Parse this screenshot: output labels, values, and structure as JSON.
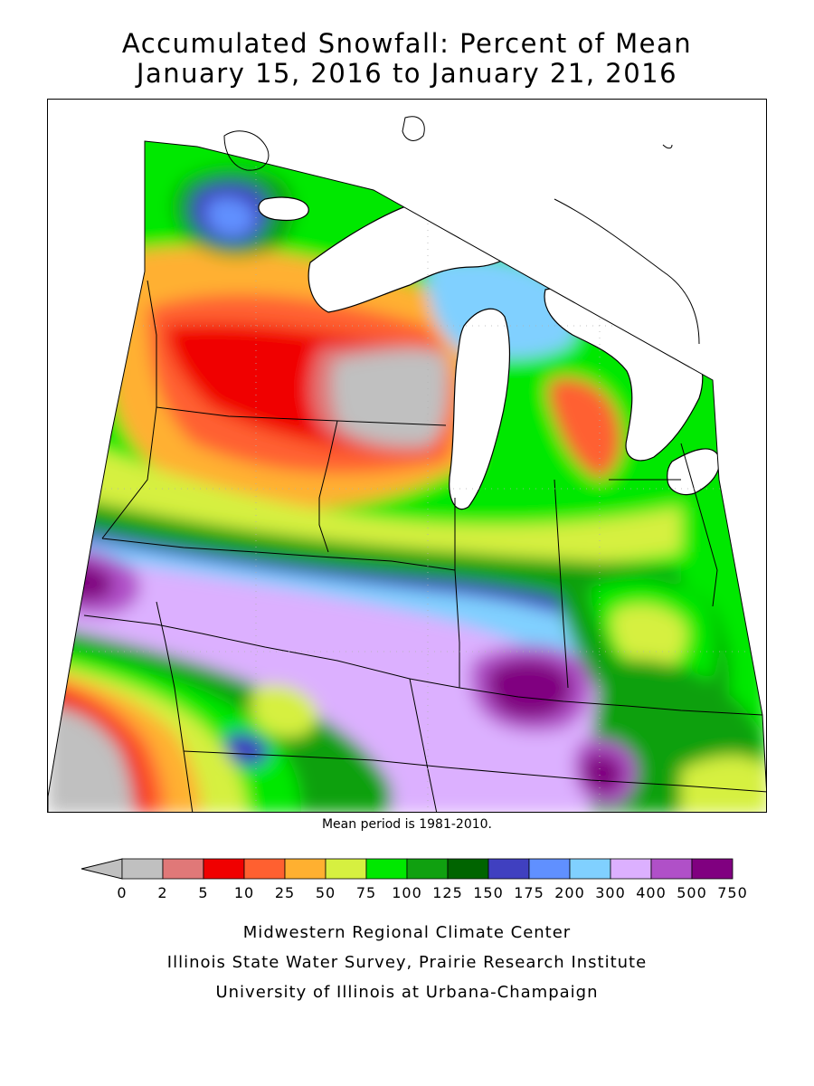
{
  "title_line1": "Accumulated Snowfall: Percent of Mean",
  "title_line2": "January 15, 2016 to January 21, 2016",
  "mean_period_note": "Mean period is 1981-2010.",
  "legend": {
    "arrow_color": "#c0c0c0",
    "tick_labels": [
      "0",
      "2",
      "5",
      "10",
      "25",
      "50",
      "75",
      "100",
      "125",
      "150",
      "175",
      "200",
      "300",
      "400",
      "500",
      "750"
    ],
    "colors": [
      "#c0c0c0",
      "#e07878",
      "#f00000",
      "#ff6030",
      "#ffb030",
      "#d6f040",
      "#00e800",
      "#10a010",
      "#006400",
      "#4040c0",
      "#6090ff",
      "#80d0ff",
      "#dcb0ff",
      "#b050c8",
      "#800080"
    ]
  },
  "credits": [
    "Midwestern Regional Climate Center",
    "Illinois State Water Survey, Prairie Research Institute",
    "University of Illinois at Urbana-Champaign"
  ]
}
